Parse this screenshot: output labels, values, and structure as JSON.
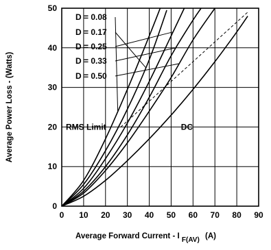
{
  "chart_data": {
    "type": "line",
    "xlabel": "Average Forward Current - I",
    "xlabel_subscript": "F(AV)",
    "xlabel_unit": "(A)",
    "ylabel": "Average Power Loss - (Watts)",
    "xlim": [
      0,
      90
    ],
    "ylim": [
      0,
      50
    ],
    "x_ticks": [
      0,
      10,
      20,
      30,
      40,
      50,
      60,
      70,
      80,
      90
    ],
    "y_ticks": [
      0,
      10,
      20,
      30,
      40,
      50
    ],
    "grid": true,
    "series": [
      {
        "name": "D = 0.08",
        "x": [
          0,
          10,
          20,
          30,
          40,
          45
        ],
        "y": [
          0,
          6.5,
          17,
          29.5,
          43,
          50
        ]
      },
      {
        "name": "D = 0.17",
        "x": [
          0,
          10,
          20,
          30,
          40,
          48
        ],
        "y": [
          0,
          5.5,
          14,
          24.5,
          37,
          49.5
        ]
      },
      {
        "name": "D = 0.25",
        "x": [
          0,
          10,
          20,
          30,
          40,
          50,
          56
        ],
        "y": [
          0,
          4.5,
          12,
          21,
          31.5,
          43,
          50
        ]
      },
      {
        "name": "D = 0.33",
        "x": [
          0,
          10,
          20,
          30,
          40,
          50,
          60,
          65
        ],
        "y": [
          0,
          3.8,
          10,
          18,
          27.5,
          38,
          47,
          51
        ]
      },
      {
        "name": "D = 0.50",
        "x": [
          0,
          10,
          20,
          30,
          40,
          50,
          60,
          70
        ],
        "y": [
          0,
          3.3,
          9,
          16,
          24,
          32.5,
          42,
          50
        ]
      },
      {
        "name": "DC",
        "x": [
          0,
          10,
          20,
          30,
          40,
          50,
          60,
          70,
          80,
          85
        ],
        "y": [
          0,
          2.5,
          6.5,
          11.5,
          17,
          23,
          29.5,
          36.5,
          44,
          48
        ]
      }
    ],
    "rms_limit": {
      "label": "RMS Limit",
      "x": [
        27,
        85
      ],
      "y": [
        20,
        49
      ],
      "style": "dashed"
    },
    "annotations": {
      "rms_limit_label": "RMS Limit",
      "dc_label": "DC"
    }
  }
}
